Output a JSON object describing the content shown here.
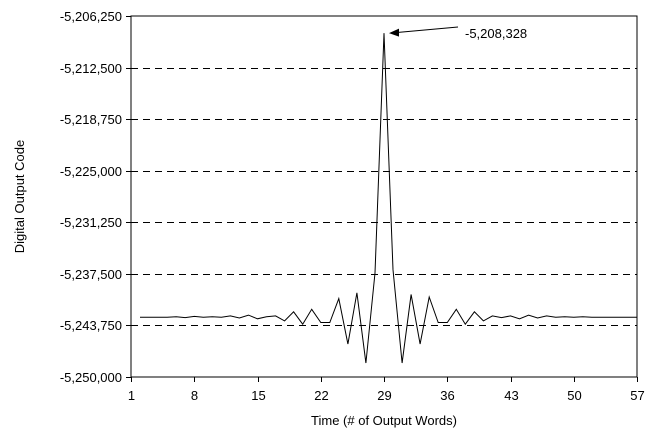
{
  "chart_data": {
    "type": "line",
    "title": "",
    "xlabel": "Time (# of Output Words)",
    "ylabel": "Digital Output Code",
    "xlim": [
      1,
      57
    ],
    "ylim": [
      -5250000,
      -5206250
    ],
    "x_ticks": [
      1,
      8,
      15,
      22,
      29,
      36,
      43,
      50,
      57
    ],
    "x_tick_labels": [
      "1",
      "8",
      "15",
      "22",
      "29",
      "36",
      "43",
      "50",
      "57"
    ],
    "y_ticks": [
      -5206250,
      -5212500,
      -5218750,
      -5225000,
      -5231250,
      -5237500,
      -5243750,
      -5250000
    ],
    "y_tick_labels": [
      "-5,206,250",
      "-5,212,500",
      "-5,218,750",
      "-5,225,000",
      "-5,231,250",
      "-5,237,500",
      "-5,243,750",
      "-5,250,000"
    ],
    "grid": "horizontal dashed",
    "line_color": "#000000",
    "series": [
      {
        "x": [
          2,
          3,
          4,
          5,
          6,
          7,
          8,
          9,
          10,
          11,
          12,
          13,
          14,
          15,
          16,
          17,
          18,
          19,
          20,
          21,
          22,
          23,
          24,
          25,
          26,
          27,
          28,
          29,
          30,
          31,
          32,
          33,
          34,
          35,
          36,
          37,
          38,
          39,
          40,
          41,
          42,
          43,
          44,
          45,
          46,
          47,
          48,
          49,
          50,
          51,
          52,
          53,
          54,
          55,
          56,
          57
        ],
        "values": [
          -5242750,
          -5242750,
          -5242750,
          -5242750,
          -5242700,
          -5242800,
          -5242650,
          -5242750,
          -5242700,
          -5242750,
          -5242600,
          -5242850,
          -5242500,
          -5242950,
          -5242700,
          -5242600,
          -5243200,
          -5242100,
          -5243600,
          -5241800,
          -5243400,
          -5243400,
          -5240500,
          -5246000,
          -5239800,
          -5248300,
          -5237400,
          -5208328,
          -5237000,
          -5248300,
          -5240000,
          -5246000,
          -5240300,
          -5243400,
          -5243400,
          -5241800,
          -5243600,
          -5242100,
          -5243200,
          -5242600,
          -5242800,
          -5242600,
          -5242950,
          -5242500,
          -5242850,
          -5242600,
          -5242750,
          -5242700,
          -5242750,
          -5242700,
          -5242750,
          -5242750,
          -5242750,
          -5242750,
          -5242750,
          -5242750
        ]
      }
    ],
    "annotations": [
      {
        "text": "-5,208,328",
        "x": 29,
        "y": -5208328
      }
    ]
  }
}
